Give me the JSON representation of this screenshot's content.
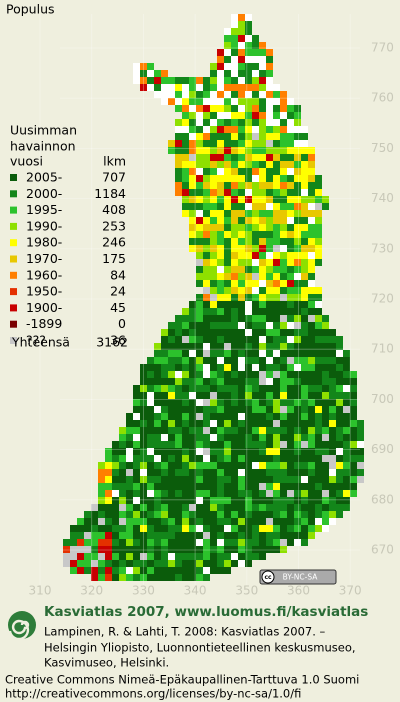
{
  "title": "Populus",
  "legend": {
    "heading": [
      "Uusimman",
      "havainnon"
    ],
    "heading_year": "vuosi",
    "heading_count": "lkm",
    "rows": [
      {
        "label": "2005-",
        "count": 707,
        "color": "#0b5c0b"
      },
      {
        "label": "2000-",
        "count": 1184,
        "color": "#13861a"
      },
      {
        "label": "1995-",
        "count": 408,
        "color": "#2cc22c"
      },
      {
        "label": "1990-",
        "count": 253,
        "color": "#8ee000"
      },
      {
        "label": "1980-",
        "count": 246,
        "color": "#ffff00"
      },
      {
        "label": "1970-",
        "count": 175,
        "color": "#e8c800"
      },
      {
        "label": "1960-",
        "count": 84,
        "color": "#ff7f00"
      },
      {
        "label": "1950-",
        "count": 24,
        "color": "#e43000"
      },
      {
        "label": "1900-",
        "count": 45,
        "color": "#c80000"
      },
      {
        "label": "-1899",
        "count": 0,
        "color": "#7a0000"
      },
      {
        "label": "???",
        "count": 36,
        "color": "#c8c8c8"
      }
    ],
    "total_label": "Yhteensä",
    "total": 3162
  },
  "grid": {
    "northing": [
      770,
      760,
      750,
      740,
      730,
      720,
      710,
      700,
      690,
      680,
      670
    ],
    "easting": [
      310,
      320,
      330,
      340,
      350,
      360,
      370
    ]
  },
  "cc_badge": {
    "cc": "cc",
    "text": "BY-NC-SA"
  },
  "footer": {
    "heading": "Kasviatlas 2007, www.luomus.fi/kasviatlas",
    "citation": [
      "Lampinen, R. & Lahti, T. 2008: Kasviatlas 2007. –",
      "Helsingin Yliopisto, Luonnontieteellinen keskusmuseo,",
      "Kasvimuseo, Helsinki."
    ],
    "license": "Creative Commons Nimeä-Epäkaupallinen-Tarttuva 1.0 Suomi",
    "url": "http://creativecommons.org/licenses/by-nc-sa/1.0/fi"
  }
}
